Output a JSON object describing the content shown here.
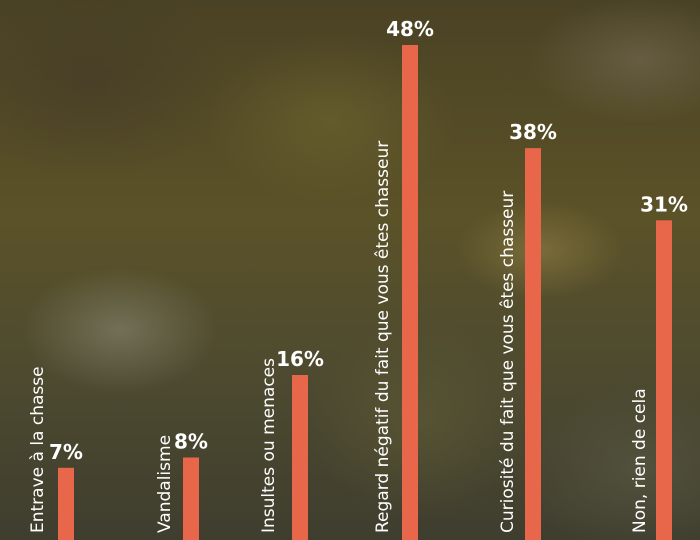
{
  "chart_data": {
    "type": "bar",
    "orientation": "vertical",
    "value_suffix": "%",
    "bar_color": "#E8664A",
    "ylim": [
      0,
      50
    ],
    "categories": [
      "Entrave à la chasse",
      "Vandalisme",
      "Insultes ou menaces",
      "Regard négatif du fait que vous êtes chasseur",
      "Curiosité du fait que vous êtes chasseur",
      "Non, rien de cela"
    ],
    "values": [
      7,
      8,
      16,
      48,
      38,
      31
    ],
    "value_labels": [
      "7%",
      "8%",
      "16%",
      "48%",
      "38%",
      "31%"
    ],
    "grid": false,
    "legend": "none"
  }
}
